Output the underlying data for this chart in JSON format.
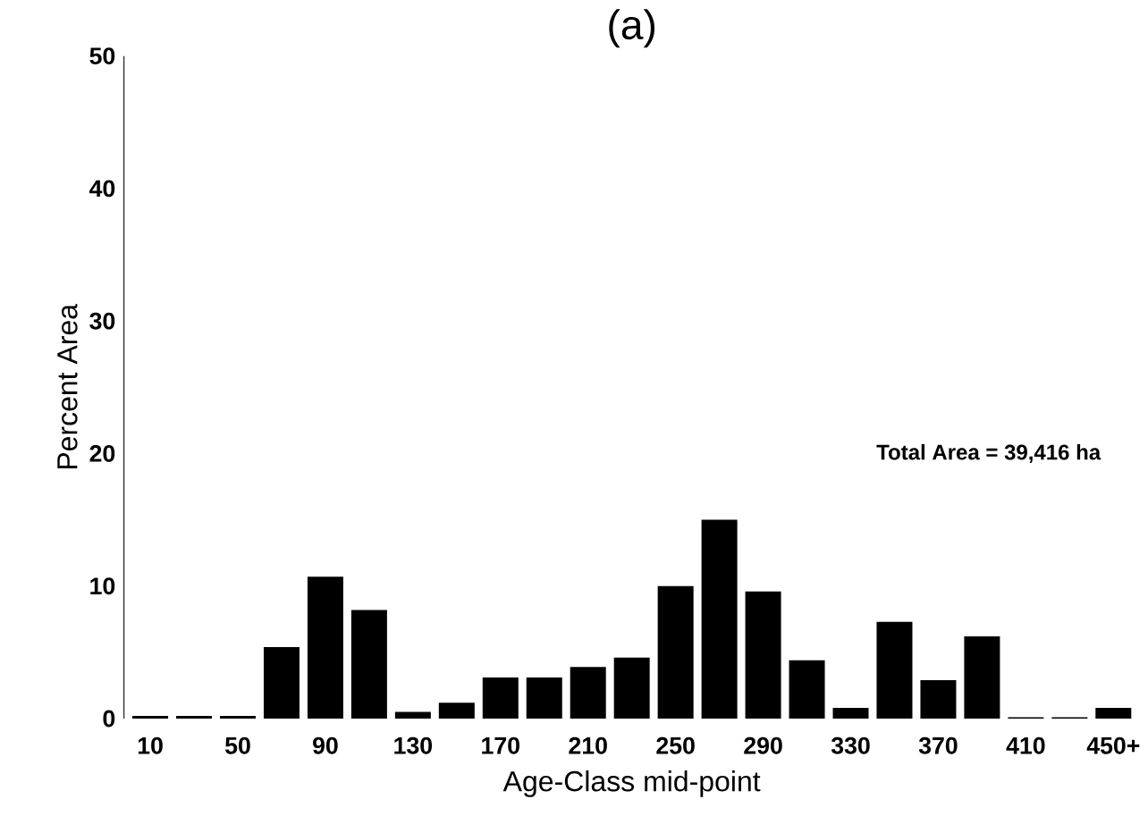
{
  "chart_data": {
    "type": "bar",
    "title": "(a)",
    "xlabel": "Age-Class mid-point",
    "ylabel": "Percent Area",
    "categories": [
      "10",
      null,
      "50",
      null,
      "90",
      null,
      "130",
      null,
      "170",
      null,
      "210",
      null,
      "250",
      null,
      "290",
      null,
      "330",
      null,
      "370",
      null,
      "410",
      null,
      "450+"
    ],
    "values": [
      0.2,
      0.2,
      0.2,
      5.4,
      10.7,
      8.2,
      0.5,
      1.2,
      3.1,
      3.1,
      3.9,
      4.6,
      10.0,
      15.0,
      9.6,
      4.4,
      0.8,
      7.3,
      2.9,
      6.2,
      0.1,
      0.1,
      0.8
    ],
    "color": "#000000",
    "ylim": [
      0,
      50
    ],
    "yticks": [
      0,
      10,
      20,
      30,
      40,
      50
    ],
    "annotations": [
      "Total Area = 39,416 ha"
    ]
  }
}
